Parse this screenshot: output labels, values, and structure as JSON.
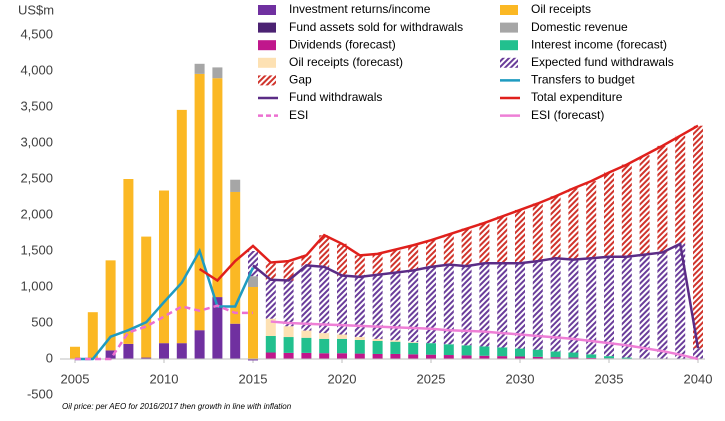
{
  "chart_data": {
    "type": "bar",
    "y_label": "US$m",
    "note": "Oil price: per AEO for 2016/2017 then growth in line with inflation",
    "x": [
      2005,
      2006,
      2007,
      2008,
      2009,
      2010,
      2011,
      2012,
      2013,
      2014,
      2015,
      2016,
      2017,
      2018,
      2019,
      2020,
      2021,
      2022,
      2023,
      2024,
      2025,
      2026,
      2027,
      2028,
      2029,
      2030,
      2031,
      2032,
      2033,
      2034,
      2035,
      2036,
      2037,
      2038,
      2039,
      2040
    ],
    "xlim": [
      2005,
      2040
    ],
    "xticks": [
      2005,
      2010,
      2015,
      2020,
      2025,
      2030,
      2035,
      2040
    ],
    "ylim": [
      -500,
      4500
    ],
    "yticks": [
      {
        "value": -500,
        "label": "-500"
      },
      0,
      500,
      {
        "value": 1000,
        "label": "1,000"
      },
      {
        "value": 1500,
        "label": "1,500"
      },
      {
        "value": 2000,
        "label": "2,000"
      },
      {
        "value": 2500,
        "label": "2,500"
      },
      {
        "value": 3000,
        "label": "3,000"
      },
      {
        "value": 3500,
        "label": "3,500"
      },
      {
        "value": 4000,
        "label": "4,000"
      },
      {
        "value": 4500,
        "label": "4,500"
      }
    ],
    "series": [
      {
        "name": "Investment returns/income",
        "kind": "bar",
        "color": "#7030a0",
        "values": [
          0,
          10,
          120,
          210,
          20,
          220,
          220,
          400,
          860,
          490,
          -20,
          null,
          null,
          null,
          null,
          null,
          null,
          null,
          null,
          null,
          null,
          null,
          null,
          null,
          null,
          null,
          null,
          null,
          null,
          null,
          null,
          null,
          null,
          null,
          null,
          null
        ]
      },
      {
        "name": "Oil receipts",
        "kind": "bar",
        "color": "#fbb824",
        "values": [
          170,
          640,
          1250,
          2290,
          1680,
          2120,
          3240,
          3560,
          3040,
          1830,
          1000,
          null,
          null,
          null,
          null,
          null,
          null,
          null,
          null,
          null,
          null,
          null,
          null,
          null,
          null,
          null,
          null,
          null,
          null,
          null,
          null,
          null,
          null,
          null,
          null,
          null
        ]
      },
      {
        "name": "Fund assets sold for withdrawals",
        "kind": "bar",
        "color": "#4b2272",
        "values": [
          null,
          null,
          null,
          null,
          null,
          null,
          null,
          null,
          null,
          null,
          null,
          null,
          null,
          null,
          null,
          null,
          null,
          null,
          null,
          null,
          null,
          null,
          null,
          null,
          null,
          null,
          null,
          null,
          null,
          null,
          null,
          null,
          null,
          null,
          null,
          null
        ]
      },
      {
        "name": "Domestic revenue",
        "kind": "bar",
        "color": "#a6a6a6",
        "values": [
          0,
          0,
          0,
          0,
          0,
          0,
          0,
          140,
          150,
          170,
          150,
          null,
          null,
          null,
          null,
          null,
          null,
          null,
          null,
          null,
          null,
          null,
          null,
          null,
          null,
          null,
          null,
          null,
          null,
          null,
          null,
          null,
          null,
          null,
          null,
          null
        ]
      },
      {
        "name": "Dividends (forecast)",
        "kind": "bar",
        "color": "#c0178c",
        "values": [
          null,
          null,
          null,
          null,
          null,
          null,
          null,
          null,
          null,
          null,
          null,
          90,
          85,
          85,
          80,
          80,
          75,
          70,
          70,
          65,
          60,
          55,
          50,
          45,
          40,
          35,
          30,
          25,
          20,
          15,
          10,
          5,
          0,
          0,
          0,
          0
        ]
      },
      {
        "name": "Interest income (forecast)",
        "kind": "bar",
        "color": "#22c08e",
        "values": [
          null,
          null,
          null,
          null,
          null,
          null,
          null,
          null,
          null,
          null,
          null,
          230,
          220,
          210,
          200,
          200,
          190,
          180,
          170,
          160,
          160,
          150,
          140,
          130,
          120,
          110,
          100,
          80,
          70,
          50,
          30,
          15,
          0,
          0,
          0,
          0
        ]
      },
      {
        "name": "Oil receipts (forecast)",
        "kind": "bar",
        "color": "#fde1b3",
        "values": [
          null,
          null,
          null,
          null,
          null,
          null,
          null,
          null,
          null,
          null,
          null,
          240,
          150,
          100,
          80,
          60,
          40,
          30,
          20,
          10,
          0,
          0,
          0,
          0,
          0,
          0,
          0,
          0,
          0,
          0,
          0,
          0,
          0,
          0,
          0,
          0
        ]
      },
      {
        "name": "Expected fund withdrawals",
        "kind": "bar",
        "color": "#6a3d9a",
        "hatch": true,
        "values": [
          null,
          null,
          null,
          null,
          null,
          null,
          null,
          null,
          null,
          null,
          350,
          540,
          635,
          905,
          920,
          820,
          835,
          890,
          940,
          995,
          1060,
          1105,
          1100,
          1155,
          1170,
          1185,
          1230,
          1295,
          1290,
          1335,
          1380,
          1400,
          1450,
          1480,
          1600,
          150
        ]
      },
      {
        "name": "Gap",
        "kind": "bar",
        "color": "#d0342c",
        "hatch": true,
        "values": [
          null,
          null,
          null,
          null,
          null,
          null,
          null,
          null,
          null,
          null,
          null,
          240,
          270,
          140,
          440,
          440,
          300,
          290,
          320,
          350,
          370,
          420,
          520,
          560,
          650,
          740,
          800,
          860,
          990,
          1070,
          1170,
          1280,
          1380,
          1480,
          1500,
          3090
        ]
      },
      {
        "name": "Transfers to budget",
        "kind": "line",
        "color": "#1f9bc0",
        "values": [
          0,
          0,
          310,
          400,
          510,
          790,
          1060,
          1500,
          730,
          730,
          1270,
          null,
          null,
          null,
          null,
          null,
          null,
          null,
          null,
          null,
          null,
          null,
          null,
          null,
          null,
          null,
          null,
          null,
          null,
          null,
          null,
          null,
          null,
          null,
          null,
          null
        ]
      },
      {
        "name": "Fund withdrawals",
        "kind": "line",
        "color": "#5b2c86",
        "values": [
          null,
          null,
          null,
          null,
          null,
          null,
          null,
          null,
          null,
          null,
          1300,
          1100,
          1090,
          1300,
          1280,
          1160,
          1140,
          1170,
          1200,
          1230,
          1280,
          1310,
          1290,
          1330,
          1330,
          1330,
          1360,
          1400,
          1380,
          1400,
          1420,
          1420,
          1450,
          1480,
          1600,
          150
        ]
      },
      {
        "name": "Total expenditure",
        "kind": "line",
        "color": "#e0201c",
        "values": [
          null,
          null,
          null,
          null,
          null,
          null,
          null,
          1250,
          1090,
          1360,
          1570,
          1340,
          1360,
          1440,
          1720,
          1600,
          1440,
          1460,
          1520,
          1580,
          1650,
          1730,
          1810,
          1890,
          1980,
          2070,
          2160,
          2260,
          2370,
          2470,
          2590,
          2700,
          2830,
          2960,
          3100,
          3240
        ]
      },
      {
        "name": "ESI",
        "kind": "line",
        "color": "#ec6fd0",
        "dashed": true,
        "values": [
          0,
          0,
          0,
          370,
          450,
          590,
          730,
          670,
          740,
          640,
          640,
          null,
          null,
          null,
          null,
          null,
          null,
          null,
          null,
          null,
          null,
          null,
          null,
          null,
          null,
          null,
          null,
          null,
          null,
          null,
          null,
          null,
          null,
          null,
          null,
          null
        ]
      },
      {
        "name": "ESI (forecast)",
        "kind": "line",
        "color": "#ee7fd6",
        "values": [
          null,
          null,
          null,
          null,
          null,
          null,
          null,
          null,
          null,
          null,
          null,
          520,
          500,
          490,
          480,
          470,
          460,
          450,
          440,
          430,
          420,
          400,
          390,
          380,
          360,
          340,
          320,
          300,
          280,
          250,
          220,
          190,
          150,
          110,
          60,
          0
        ]
      }
    ]
  }
}
